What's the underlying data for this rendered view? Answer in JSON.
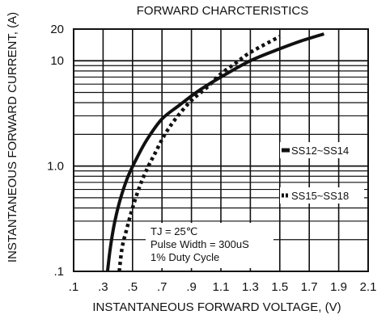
{
  "chart_data": {
    "type": "line",
    "title": "FORWARD CHARCTERISTICS",
    "xlabel": "INSTANTANEOUS FORWARD VOLTAGE, (V)",
    "ylabel": "INSTANTANEOUS FORWARD CURRENT, (A)",
    "x_scale": "linear",
    "y_scale": "log",
    "xlim": [
      0.1,
      2.1
    ],
    "ylim": [
      0.1,
      20
    ],
    "x_ticks": [
      0.1,
      0.3,
      0.5,
      0.7,
      0.9,
      1.1,
      1.3,
      1.5,
      1.7,
      1.9,
      2.1
    ],
    "x_tick_labels": [
      ".1",
      ".3",
      ".5",
      ".7",
      ".9",
      "1.1",
      "1.3",
      "1.5",
      "1.7",
      "1.9",
      "2.1"
    ],
    "y_ticks": [
      0.1,
      1.0,
      10,
      20
    ],
    "y_tick_labels": [
      ".1",
      "1.0",
      "10",
      "20"
    ],
    "grid": true,
    "legend_position": "right",
    "series": [
      {
        "name": "SS12~SS14",
        "style": "solid",
        "x": [
          0.33,
          0.35,
          0.38,
          0.42,
          0.47,
          0.53,
          0.6,
          0.7,
          0.82,
          0.95,
          1.1,
          1.3,
          1.5,
          1.65,
          1.8
        ],
        "y": [
          0.1,
          0.17,
          0.3,
          0.5,
          0.8,
          1.2,
          1.8,
          2.8,
          3.8,
          5.2,
          7.0,
          10.0,
          13.0,
          15.5,
          18.0
        ]
      },
      {
        "name": "SS15~SS18",
        "style": "dotted",
        "x": [
          0.41,
          0.43,
          0.46,
          0.5,
          0.55,
          0.6,
          0.65,
          0.72,
          0.8,
          0.9,
          1.0,
          1.1,
          1.2,
          1.3,
          1.5
        ],
        "y": [
          0.1,
          0.17,
          0.25,
          0.4,
          0.65,
          0.95,
          1.3,
          2.0,
          2.9,
          4.2,
          5.5,
          7.5,
          9.5,
          12.0,
          17.0
        ]
      }
    ],
    "annotations": [
      "TJ = 25℃",
      "Pulse Width = 300uS",
      "1% Duty Cycle"
    ]
  }
}
